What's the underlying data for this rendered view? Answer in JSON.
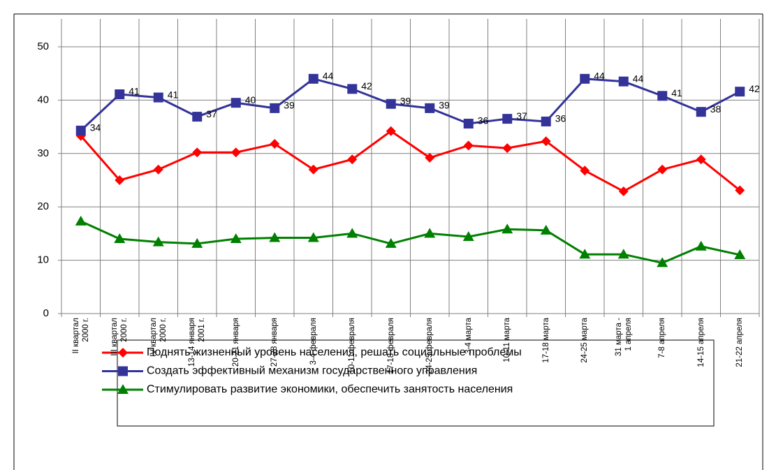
{
  "chart_data": {
    "type": "line",
    "categories": [
      "II квартал\n2000 г.",
      "III квартал\n2000 г.",
      "IV квартал\n2000 г.",
      "13-14 января\n2001 г.",
      "20-21 января",
      "27-28 января",
      "3-4 февраля",
      "10-11 февраля",
      "17-18 февраля",
      "24-25 февраля",
      "3-4 марта",
      "10-11 марта",
      "17-18 марта",
      "24-25 марта",
      "31 марта -\n1 апреля",
      "7-8 апреля",
      "14-15 апреля",
      "21-22 апреля"
    ],
    "series": [
      {
        "name": "Поднять жизненный уровень населения, решать социальные проблемы",
        "color": "#ff0000",
        "marker": "diamond",
        "values": [
          33.3,
          25,
          27,
          30.2,
          30.2,
          31.8,
          27,
          28.9,
          34.2,
          29.2,
          31.5,
          31,
          32.3,
          26.8,
          22.9,
          27,
          28.9,
          23.1
        ]
      },
      {
        "name": "Создать эффективный механизм государственного управления",
        "color": "#333399",
        "marker": "square",
        "values": [
          34.3,
          41.1,
          40.5,
          36.9,
          39.5,
          38.5,
          44,
          42.1,
          39.3,
          38.5,
          35.6,
          36.5,
          36,
          44,
          43.5,
          40.8,
          37.8,
          41.6
        ],
        "value_labels": [
          "34",
          "41",
          "41",
          "37",
          "40",
          "39",
          "44",
          "42",
          "39",
          "39",
          "36",
          "37",
          "36",
          "44",
          "44",
          "41",
          "38",
          "42"
        ]
      },
      {
        "name": "Стимулировать развитие экономики, обеспечить занятость населения",
        "color": "#008000",
        "marker": "triangle",
        "values": [
          17.3,
          14,
          13.4,
          13.1,
          14,
          14.2,
          14.2,
          15,
          13.1,
          15,
          14.4,
          15.8,
          15.6,
          11.1,
          11.1,
          9.5,
          12.6,
          11
        ]
      }
    ],
    "ylim": [
      0,
      50
    ],
    "yticks": [
      0,
      10,
      20,
      30,
      40,
      50
    ],
    "grid": true
  }
}
